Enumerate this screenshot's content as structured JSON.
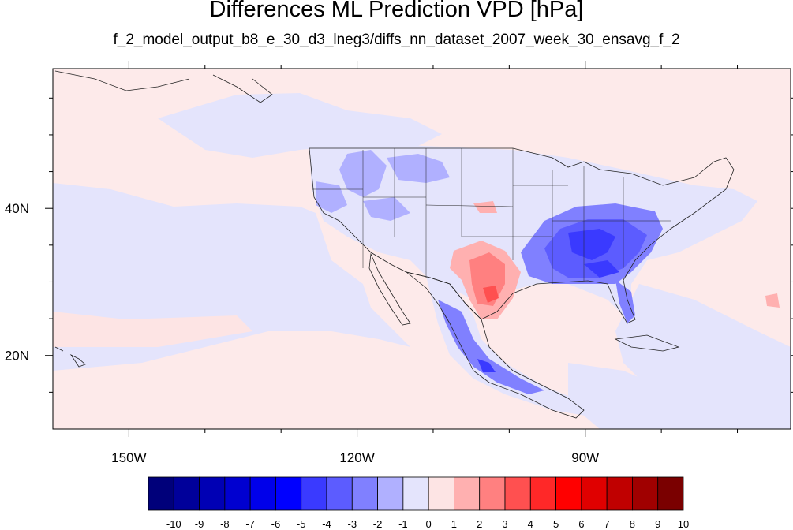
{
  "title": "Differences ML Prediction VPD [hPa]",
  "subtitle": "f_2_model_output_b8_e_30_d3_lneg3/diffs_nn_dataset_2007_week_30_ensavg_f_2",
  "map": {
    "lon_range": [
      -160,
      -63
    ],
    "lat_range": [
      10,
      59
    ],
    "lon_ticks": [
      {
        "value": -150,
        "label": "150W"
      },
      {
        "value": -120,
        "label": "120W"
      },
      {
        "value": -90,
        "label": "90W"
      }
    ],
    "lat_ticks": [
      {
        "value": 40,
        "label": "40N"
      },
      {
        "value": 20,
        "label": "20N"
      }
    ],
    "background_color": "#fdeaea"
  },
  "colorbar": {
    "labels": [
      "-10",
      "-9",
      "-8",
      "-7",
      "-6",
      "-5",
      "-4",
      "-3",
      "-2",
      "-1",
      "0",
      "1",
      "2",
      "3",
      "4",
      "5",
      "6",
      "7",
      "8",
      "9",
      "10"
    ],
    "colors": [
      "#00007a",
      "#00009a",
      "#0000b4",
      "#0000d0",
      "#0000ea",
      "#0000ff",
      "#3a3aff",
      "#5c5cff",
      "#8080ff",
      "#b0b0ff",
      "#e4e4fc",
      "#fde4e4",
      "#ffb0b0",
      "#ff8080",
      "#ff5050",
      "#ff2828",
      "#ff0000",
      "#e00000",
      "#c00000",
      "#a00000",
      "#7a0000"
    ]
  },
  "regions": [
    {
      "name": "pacific-negative-band",
      "value": -1
    },
    {
      "name": "north-pacific-negative",
      "value": -1
    },
    {
      "name": "western-us-negative",
      "value": -2
    },
    {
      "name": "texas-positive",
      "value": 3
    },
    {
      "name": "southeast-us-negative",
      "value": -4
    },
    {
      "name": "mexico-negative",
      "value": -3
    }
  ]
}
